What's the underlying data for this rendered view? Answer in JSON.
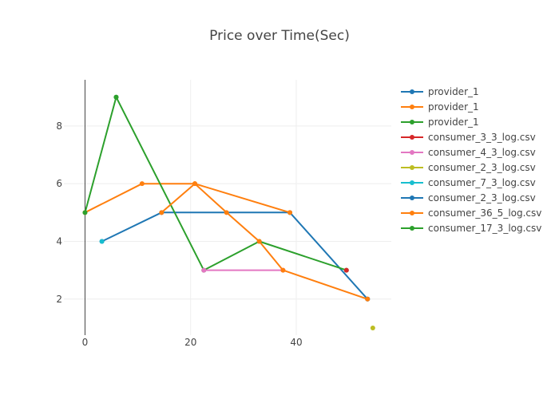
{
  "chart_data": {
    "type": "line",
    "title": "Price over Time(Sec)",
    "xlabel": "",
    "ylabel": "",
    "xlim": [
      -4,
      58
    ],
    "ylim": [
      0.75,
      9.6
    ],
    "x_ticks": [
      0,
      20,
      40
    ],
    "y_ticks": [
      2,
      4,
      6,
      8
    ],
    "grid": true,
    "legend_position": "right",
    "series": [
      {
        "name": "provider_1",
        "color": "#1f77b4",
        "points": [
          [
            3.2,
            4
          ],
          [
            14.5,
            5
          ],
          [
            38.8,
            5
          ],
          [
            53.5,
            2
          ]
        ]
      },
      {
        "name": "provider_1",
        "color": "#ff7f0e",
        "points": [
          [
            0,
            5
          ],
          [
            10.8,
            6
          ],
          [
            20.8,
            6
          ],
          [
            38.8,
            5
          ]
        ]
      },
      {
        "name": "provider_1",
        "color": "#2ca02c",
        "points": [
          [
            0,
            5
          ],
          [
            5.9,
            9
          ],
          [
            22.5,
            3
          ],
          [
            33,
            4
          ],
          [
            49.5,
            3
          ]
        ]
      },
      {
        "name": "consumer_3_3_log.csv",
        "color": "#d62728",
        "points": [
          [
            49.5,
            3
          ]
        ]
      },
      {
        "name": "consumer_4_3_log.csv",
        "color": "#e377c2",
        "points": [
          [
            22.5,
            3
          ],
          [
            37.5,
            3
          ]
        ]
      },
      {
        "name": "consumer_2_3_log.csv",
        "color": "#bcbd22",
        "points": [
          [
            54.5,
            1
          ]
        ]
      },
      {
        "name": "consumer_7_3_log.csv",
        "color": "#17becf",
        "points": [
          [
            3.2,
            4
          ]
        ]
      },
      {
        "name": "consumer_2_3_log.csv",
        "color": "#1f77b4",
        "points": [
          [
            53.5,
            2
          ]
        ]
      },
      {
        "name": "consumer_36_5_log.csv",
        "color": "#ff7f0e",
        "points": [
          [
            14.5,
            5
          ],
          [
            20.8,
            6
          ],
          [
            26.8,
            5
          ],
          [
            33,
            4
          ],
          [
            37.5,
            3
          ],
          [
            53.5,
            2
          ]
        ]
      },
      {
        "name": "consumer_17_3_log.csv",
        "color": "#2ca02c",
        "points": [
          [
            5.9,
            9
          ]
        ]
      }
    ]
  }
}
